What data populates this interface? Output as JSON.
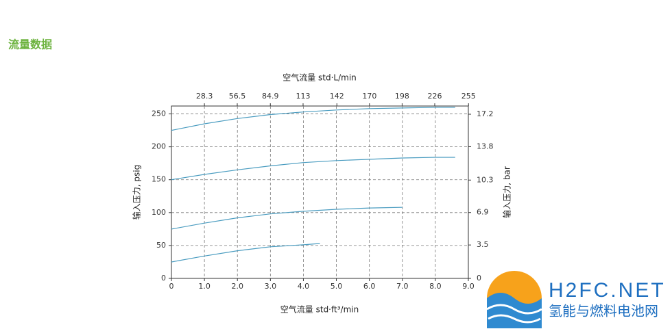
{
  "header": {
    "title": "流量数据"
  },
  "logo": {
    "name": "H2FC.NET",
    "subtitle": "氢能与燃料电池网"
  },
  "chart_data": {
    "type": "line",
    "x_label": "空气流量 std·ft³/min",
    "x2_label": "空气流量 std·L/min",
    "y_label": "输入压力, psig",
    "y2_label": "输入压力, bar",
    "xlim": [
      0,
      9
    ],
    "xticks": [
      0,
      {
        "value": 1,
        "label": "1.0"
      },
      {
        "value": 2,
        "label": "2.0"
      },
      {
        "value": 3,
        "label": "3.0"
      },
      {
        "value": 4,
        "label": "4.0"
      },
      {
        "value": 5,
        "label": "5.0"
      },
      {
        "value": 6,
        "label": "6.0"
      },
      {
        "value": 7,
        "label": "7.0"
      },
      {
        "value": 8,
        "label": "8.0"
      },
      {
        "value": 9,
        "label": "9.0"
      }
    ],
    "x2lim": [
      0,
      254.85
    ],
    "x2ticks": [
      28.3,
      56.5,
      84.9,
      113,
      142,
      170,
      198,
      226,
      255
    ],
    "ylim": [
      0,
      262
    ],
    "yticks": [
      0,
      50,
      100,
      150,
      200,
      250
    ],
    "y2lim": [
      0,
      18.06
    ],
    "y2ticks": [
      0,
      3.5,
      6.9,
      10.3,
      13.8,
      17.2
    ],
    "grid": true,
    "series": [
      {
        "color": "#4a9cc0",
        "x": [
          0,
          1,
          2,
          3,
          4,
          5,
          6,
          7,
          8,
          8.6
        ],
        "values": [
          225,
          235,
          243,
          249,
          253,
          256,
          258,
          259,
          260,
          260
        ]
      },
      {
        "color": "#4a9cc0",
        "x": [
          0,
          1,
          2,
          3,
          4,
          5,
          6,
          7,
          8,
          8.6
        ],
        "values": [
          150,
          158,
          165,
          171,
          176,
          179,
          181,
          183,
          184,
          184
        ]
      },
      {
        "color": "#4a9cc0",
        "x": [
          0,
          1,
          2,
          3,
          4,
          5,
          6,
          7
        ],
        "values": [
          75,
          84,
          92,
          98,
          102,
          105,
          107,
          108
        ]
      },
      {
        "color": "#4a9cc0",
        "x": [
          0,
          1,
          2,
          3,
          4,
          4.5
        ],
        "values": [
          25,
          34,
          42,
          48,
          51,
          53
        ]
      }
    ]
  }
}
